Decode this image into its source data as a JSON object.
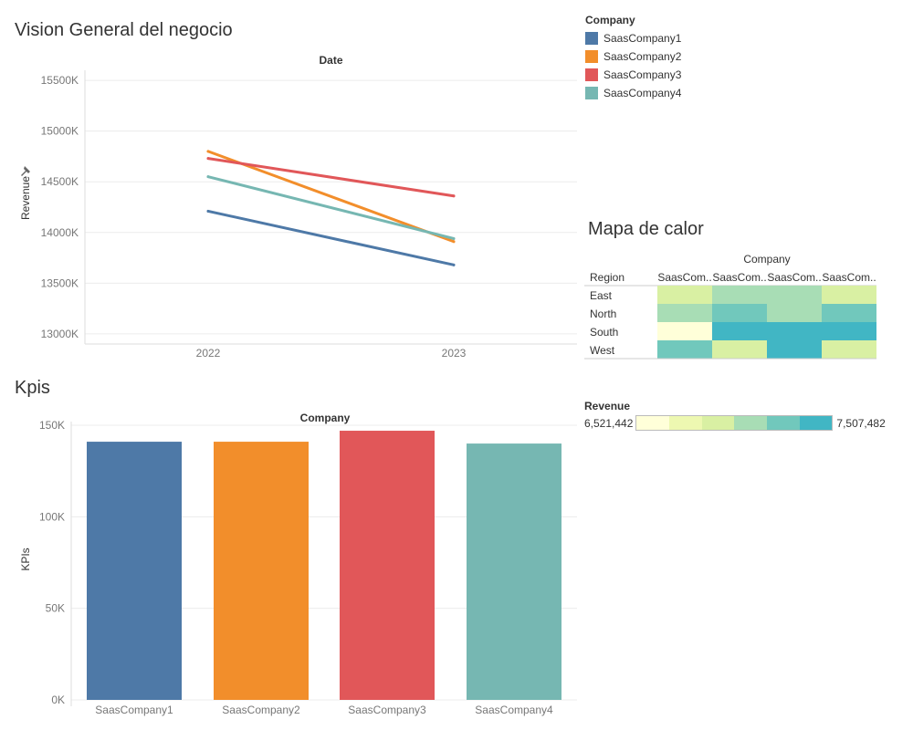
{
  "titles": {
    "overview": "Vision General del negocio",
    "kpis": "Kpis",
    "heatmap": "Mapa de calor"
  },
  "legend": {
    "title": "Company",
    "items": [
      {
        "label": "SaasCompany1",
        "color": "#4e79a7"
      },
      {
        "label": "SaasCompany2",
        "color": "#f28e2b"
      },
      {
        "label": "SaasCompany3",
        "color": "#e15759"
      },
      {
        "label": "SaasCompany4",
        "color": "#76b7b2"
      }
    ]
  },
  "revenue_legend": {
    "title": "Revenue",
    "min": "6,521,442",
    "max": "7,507,482",
    "colors": [
      "#ffffd9",
      "#edf8b1",
      "#d9f0a3",
      "#a8ddb5",
      "#71c8bc",
      "#41b6c4"
    ]
  },
  "chart_data": [
    {
      "type": "line",
      "title": "Vision General del negocio",
      "header": "Date",
      "xlabel": "",
      "ylabel": "Revenue",
      "x": [
        "2022",
        "2023"
      ],
      "ylim": [
        12900,
        15600
      ],
      "yticks": [
        13000,
        13500,
        14000,
        14500,
        15000,
        15500
      ],
      "ytick_labels": [
        "13000K",
        "13500K",
        "14000K",
        "14500K",
        "15000K",
        "15500K"
      ],
      "grid": true,
      "series": [
        {
          "name": "SaasCompany1",
          "color": "#4e79a7",
          "values": [
            14210,
            13680
          ]
        },
        {
          "name": "SaasCompany2",
          "color": "#f28e2b",
          "values": [
            14800,
            13910
          ]
        },
        {
          "name": "SaasCompany3",
          "color": "#e15759",
          "values": [
            14730,
            14360
          ]
        },
        {
          "name": "SaasCompany4",
          "color": "#76b7b2",
          "values": [
            14550,
            13940
          ]
        }
      ]
    },
    {
      "type": "bar",
      "title": "Kpis",
      "header": "Company",
      "xlabel": "",
      "ylabel": "KPIs",
      "categories": [
        "SaasCompany1",
        "SaasCompany2",
        "SaasCompany3",
        "SaasCompany4"
      ],
      "values": [
        141000,
        141000,
        147000,
        140000
      ],
      "colors": [
        "#4e79a7",
        "#f28e2b",
        "#e15759",
        "#76b7b2"
      ],
      "ylim": [
        0,
        152000
      ],
      "yticks": [
        0,
        50000,
        100000,
        150000
      ],
      "ytick_labels": [
        "0K",
        "50K",
        "100K",
        "150K"
      ],
      "grid": true
    },
    {
      "type": "heatmap",
      "title": "Mapa de calor",
      "header": "Company",
      "row_header": "Region",
      "columns": [
        "SaasCom..",
        "SaasCom..",
        "SaasCom..",
        "SaasCom.."
      ],
      "rows": [
        "East",
        "North",
        "South",
        "West"
      ],
      "values": [
        [
          1,
          3,
          3,
          1
        ],
        [
          3,
          4,
          3,
          4
        ],
        [
          0,
          5,
          5,
          5
        ],
        [
          4,
          1,
          5,
          1
        ]
      ],
      "color_scale": [
        "#ffffd9",
        "#d9f0a3",
        "#bde5b0",
        "#a8ddb5",
        "#71c8bc",
        "#41b6c4"
      ]
    }
  ]
}
